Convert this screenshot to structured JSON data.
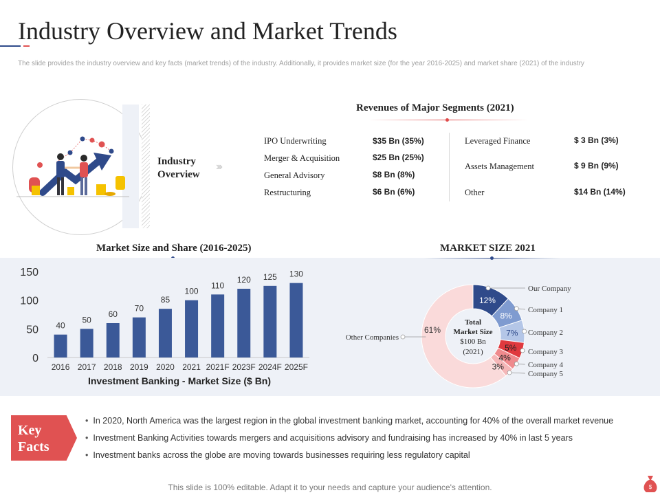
{
  "header": {
    "title": "Industry Overview and Market Trends",
    "subtitle": "The slide provides the industry overview and key facts (market trends) of the industry. Additionally, it provides market size (for the year 2016-2025) and market share (2021) of the industry"
  },
  "overview": {
    "label": "Industry Overview",
    "chevrons": "›››"
  },
  "revenues": {
    "title": "Revenues of Major Segments (2021)",
    "left": [
      {
        "name": "IPO Underwriting",
        "value": "$35 Bn  (35%)"
      },
      {
        "name": "Merger & Acquisition",
        "value": "$25 Bn  (25%)"
      },
      {
        "name": "General Advisory",
        "value": "$8 Bn  (8%)"
      },
      {
        "name": "Restructuring",
        "value": "$6 Bn  (6%)"
      }
    ],
    "right": [
      {
        "name": "Leveraged  Finance",
        "value": "$ 3 Bn  (3%)"
      },
      {
        "name": "Assets Management",
        "value": "$ 9 Bn  (9%)"
      },
      {
        "name": "Other",
        "value": "$14 Bn  (14%)"
      }
    ]
  },
  "chart_data": [
    {
      "type": "bar",
      "title": "Market Size and Share (2016-2025)",
      "xlabel": "Investment Banking - Market Size ($ Bn)",
      "ylabel": "",
      "categories": [
        "2016",
        "2017",
        "2018",
        "2019",
        "2020",
        "2021",
        "2021F",
        "2023F",
        "2024F",
        "2025F"
      ],
      "values": [
        40,
        50,
        60,
        70,
        85,
        100,
        110,
        120,
        125,
        130
      ],
      "ylim": [
        0,
        150
      ],
      "yticks": [
        0,
        50,
        100,
        150
      ],
      "grid": false,
      "bar_color": "#3b5998"
    },
    {
      "type": "pie",
      "title": "MARKET SIZE 2021",
      "center_label": [
        "Total",
        "Market Size",
        "$100 Bn",
        "(2021)"
      ],
      "slices": [
        {
          "name": "Our Company",
          "value": 12,
          "label": "12%",
          "color": "#2f4a8a"
        },
        {
          "name": "Company 1",
          "value": 8,
          "label": "8%",
          "color": "#7f9bd0"
        },
        {
          "name": "Company 2",
          "value": 7,
          "label": "7%",
          "color": "#b4c6e7"
        },
        {
          "name": "Company 3",
          "value": 5,
          "label": "5%",
          "color": "#e0393e"
        },
        {
          "name": "Company 4",
          "value": 4,
          "label": "4%",
          "color": "#ef8a8d"
        },
        {
          "name": "Company 5",
          "value": 3,
          "label": "3%",
          "color": "#f5b7b8"
        },
        {
          "name": "Other Companies",
          "value": 61,
          "label": "61%",
          "color": "#fadada"
        }
      ]
    }
  ],
  "key_facts": {
    "label_line1": "Key",
    "label_line2": "Facts",
    "bullet": "•",
    "items": [
      "In 2020, North America was the largest region in the global investment banking market, accounting for 40% of the overall  market revenue",
      "Investment Banking Activities towards mergers and acquisitions advisory  and fundraising has increased by 40% in last 5 years",
      "Investment banks across the globe are moving towards businesses requiring less regulatory capital"
    ]
  },
  "footer": {
    "text": "This slide is 100% editable. Adapt it to your needs and capture your audience's attention."
  },
  "colors": {
    "accent_red": "#e05252",
    "navy": "#2f4a8a",
    "bar": "#3b5998",
    "band": "#eef1f7"
  },
  "icons": {
    "illustration": "business-handshake-growth-icon",
    "bag": "money-bag-icon"
  }
}
